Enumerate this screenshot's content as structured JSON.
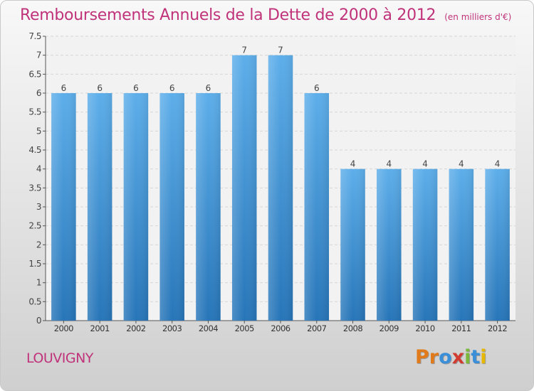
{
  "chart_data": {
    "type": "bar",
    "title": "Remboursements Annuels de la Dette de 2000 à 2012",
    "subtitle": "(en milliers d'€)",
    "categories": [
      "2000",
      "2001",
      "2002",
      "2003",
      "2004",
      "2005",
      "2006",
      "2007",
      "2008",
      "2009",
      "2010",
      "2011",
      "2012"
    ],
    "values": [
      6,
      6,
      6,
      6,
      6,
      7,
      7,
      6,
      4,
      4,
      4,
      4,
      4
    ],
    "ylim": [
      0,
      7.5
    ],
    "yticks": [
      "0",
      "0.5",
      "1",
      "1.5",
      "2",
      "2.5",
      "3",
      "3.5",
      "4",
      "4.5",
      "5",
      "5.5",
      "6",
      "6.5",
      "7",
      "7.5"
    ],
    "grid": true,
    "bar_color": "#3d8fd6"
  },
  "footer": {
    "location": "LOUVIGNY",
    "brand_letters": [
      {
        "ch": "P",
        "color": "#e07a1b"
      },
      {
        "ch": "r",
        "color": "#e07a1b"
      },
      {
        "ch": "o",
        "color": "#3a8fd8"
      },
      {
        "ch": "x",
        "color": "#d23b2f"
      },
      {
        "ch": "i",
        "color": "#7cb83a"
      },
      {
        "ch": "t",
        "color": "#3a8fd8"
      },
      {
        "ch": "i",
        "color": "#e6b800"
      }
    ]
  }
}
